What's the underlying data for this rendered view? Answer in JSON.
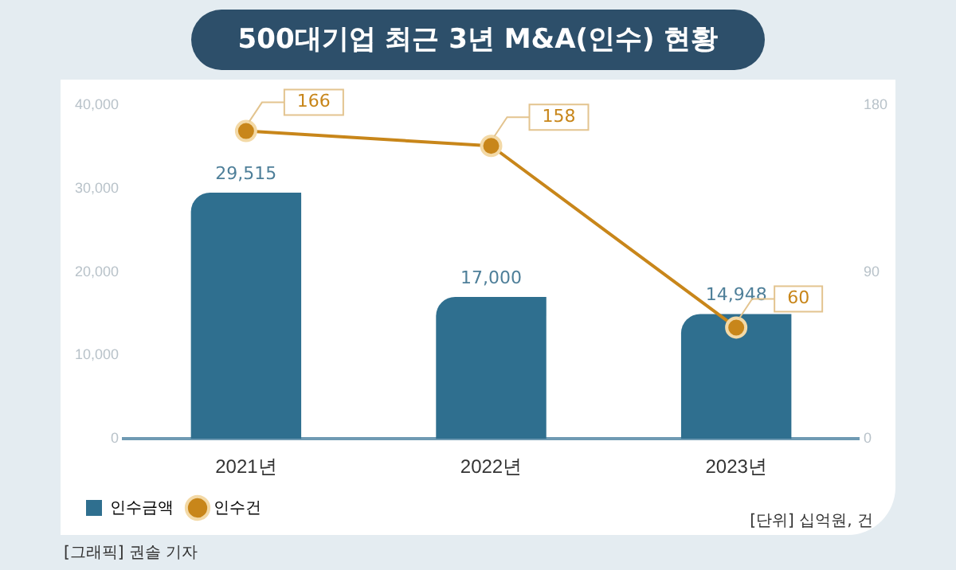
{
  "chart_data": {
    "type": "bar",
    "title": "500대기업 최근 3년 M&A(인수) 현황",
    "categories": [
      "2021년",
      "2022년",
      "2023년"
    ],
    "series": [
      {
        "name": "인수금액",
        "color": "#2f6f8f",
        "values": [
          29515,
          17000,
          14948
        ],
        "value_labels": [
          "29,515",
          "17,000",
          "14,948"
        ]
      },
      {
        "name": "인수건",
        "type": "line",
        "axis": "y2",
        "color": "#c8861a",
        "values": [
          166,
          158,
          60
        ],
        "value_labels": [
          "166",
          "158",
          "60"
        ]
      }
    ],
    "ylim": [
      0,
      40000
    ],
    "yticks": [
      0,
      {
        "value": 10000,
        "label": "10,000"
      },
      {
        "value": 20000,
        "label": "20,000"
      },
      {
        "value": 30000,
        "label": "30,000"
      },
      {
        "value": 40000,
        "label": "40,000"
      }
    ],
    "y2lim": [
      0,
      180
    ],
    "y2ticks": [
      0,
      90,
      180
    ],
    "legend": "bottom left",
    "marker": "circle",
    "annotations": [
      "[단위] 십억원, 건",
      "[그래픽] 권솔 기자"
    ]
  }
}
